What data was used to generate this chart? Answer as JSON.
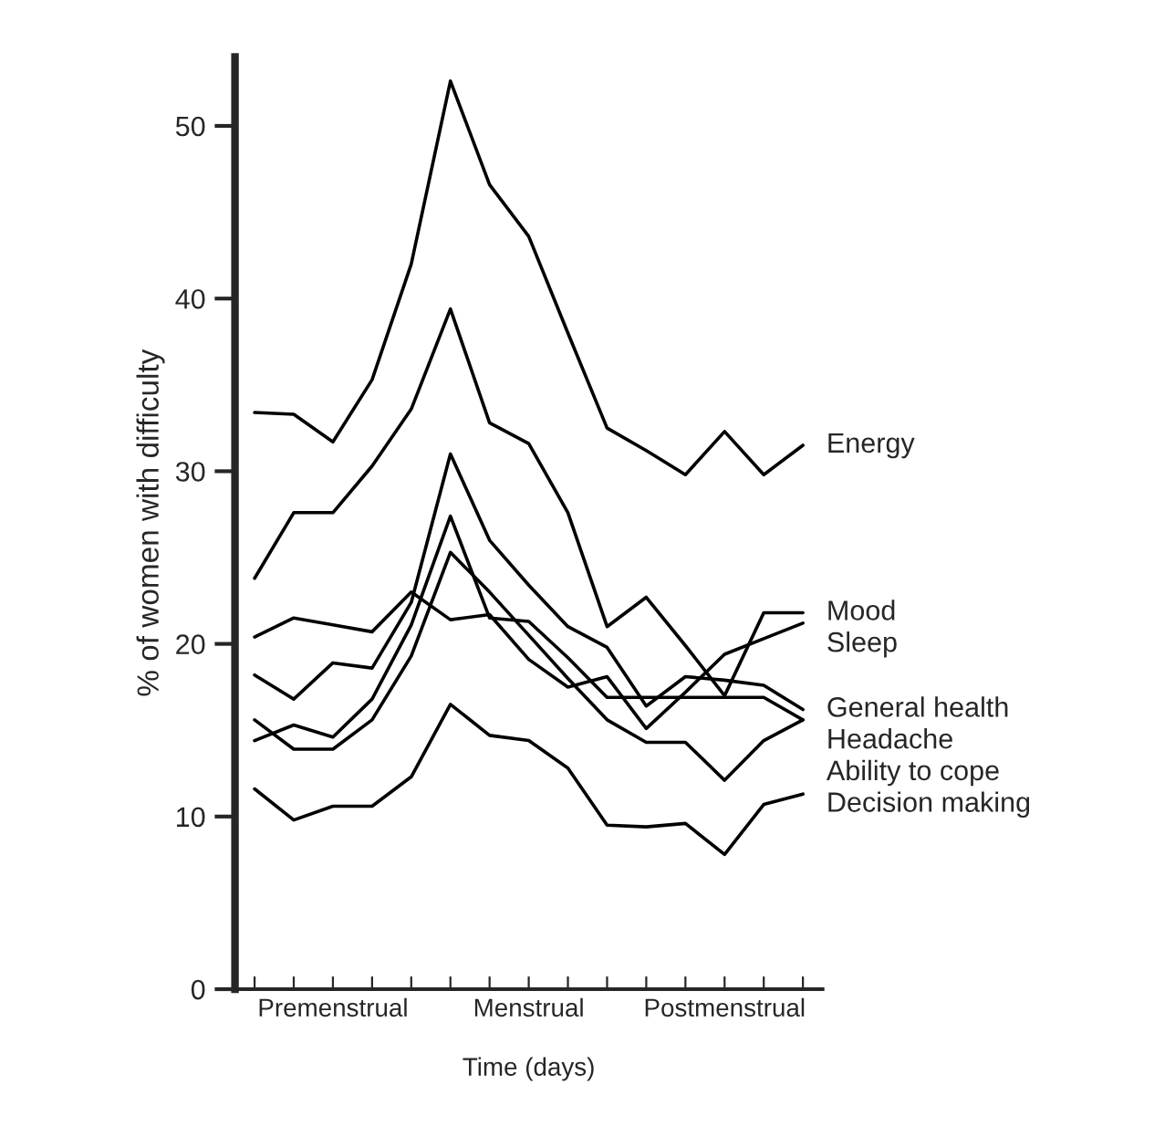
{
  "chart_data": {
    "type": "line",
    "xlabel": "Time (days)",
    "ylabel": "% of women with difficulty",
    "categories": [
      null,
      null,
      "Premenstrual",
      null,
      null,
      null,
      null,
      "Menstrual",
      null,
      null,
      null,
      null,
      "Postmenstrual",
      null,
      null
    ],
    "ylim": [
      0,
      54
    ],
    "yticks": [
      0,
      10,
      20,
      30,
      40,
      50
    ],
    "grid": false,
    "legend": false,
    "marker": "none",
    "line_style": "solid",
    "series": [
      {
        "name": "Energy",
        "color": "#000000",
        "values": [
          33.4,
          33.3,
          31.7,
          35.3,
          42.0,
          52.6,
          46.6,
          43.6,
          38.0,
          32.5,
          31.2,
          29.8,
          32.3,
          29.8,
          31.5
        ]
      },
      {
        "name": "Mood",
        "color": "#000000",
        "values": [
          23.8,
          27.6,
          27.6,
          30.3,
          33.6,
          39.4,
          32.8,
          31.6,
          27.6,
          21.0,
          22.7,
          19.9,
          17.0,
          21.8,
          21.8
        ]
      },
      {
        "name": "Sleep",
        "color": "#000000",
        "values": [
          20.4,
          21.5,
          21.1,
          20.7,
          23.0,
          21.4,
          21.7,
          19.1,
          17.5,
          18.1,
          15.1,
          17.2,
          19.4,
          20.3,
          21.2
        ]
      },
      {
        "name": "General health",
        "color": "#000000",
        "values": [
          18.2,
          16.8,
          18.9,
          18.6,
          22.4,
          31.0,
          26.0,
          23.4,
          21.0,
          19.8,
          16.4,
          18.1,
          17.9,
          17.6,
          16.2
        ]
      },
      {
        "name": "Headache",
        "color": "#000000",
        "values": [
          14.4,
          15.3,
          14.6,
          16.8,
          21.1,
          27.4,
          21.5,
          21.3,
          19.2,
          16.9,
          16.9,
          16.9,
          16.9,
          16.9,
          15.6
        ]
      },
      {
        "name": "Ability to cope",
        "color": "#000000",
        "values": [
          15.6,
          13.9,
          13.9,
          15.6,
          19.3,
          25.3,
          23.0,
          20.5,
          18.0,
          15.6,
          14.3,
          14.3,
          12.1,
          14.4,
          15.6
        ]
      },
      {
        "name": "Decision making",
        "color": "#000000",
        "values": [
          11.6,
          9.8,
          10.6,
          10.6,
          12.3,
          16.5,
          14.7,
          14.4,
          12.8,
          9.5,
          9.4,
          9.6,
          7.8,
          10.7,
          11.3
        ]
      }
    ]
  }
}
